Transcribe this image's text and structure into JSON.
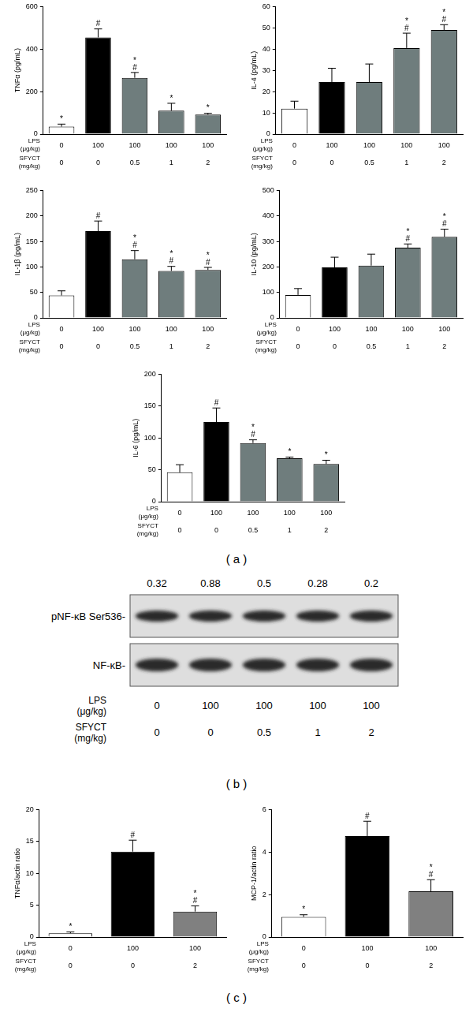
{
  "panel_labels": [
    "( a )",
    "( b )",
    "( c )"
  ],
  "chart_data": [
    {
      "type": "bar",
      "y_label": "TNFα (pg/mL)",
      "category_rows": [
        "LPS (μg/kg)",
        "SFYCT (mg/kg)"
      ],
      "categories": [
        [
          "0",
          "0"
        ],
        [
          "100",
          "0"
        ],
        [
          "100",
          "0.5"
        ],
        [
          "100",
          "1"
        ],
        [
          "100",
          "2"
        ]
      ],
      "values": [
        35,
        455,
        265,
        110,
        92
      ],
      "errors": [
        12,
        40,
        25,
        35,
        6
      ],
      "significance": [
        [
          "*"
        ],
        [
          "#"
        ],
        [
          "*",
          "#"
        ],
        [
          "*"
        ],
        [
          "*"
        ]
      ],
      "colors": [
        "#ffffff",
        "#000000",
        "#6f7d7d",
        "#6f7d7d",
        "#6f7d7d"
      ],
      "ylim": [
        0,
        600
      ],
      "yticks": [
        0,
        200,
        400,
        600
      ]
    },
    {
      "type": "bar",
      "y_label": "IL-4 (pg/mL)",
      "category_rows": [
        "LPS (μg/kg)",
        "SFYCT (mg/kg)"
      ],
      "categories": [
        [
          "0",
          "0"
        ],
        [
          "100",
          "0"
        ],
        [
          "100",
          "0.5"
        ],
        [
          "100",
          "1"
        ],
        [
          "100",
          "2"
        ]
      ],
      "values": [
        12,
        24.5,
        24.5,
        40.5,
        49
      ],
      "errors": [
        3.5,
        6.5,
        8.5,
        7,
        2.5
      ],
      "significance": [
        [],
        [],
        [],
        [
          "*",
          "#"
        ],
        [
          "*",
          "#"
        ]
      ],
      "colors": [
        "#ffffff",
        "#000000",
        "#6f7d7d",
        "#6f7d7d",
        "#6f7d7d"
      ],
      "ylim": [
        0,
        60
      ],
      "yticks": [
        0,
        10,
        20,
        30,
        40,
        50,
        60
      ]
    },
    {
      "type": "bar",
      "y_label": "IL-1β (pg/mL)",
      "category_rows": [
        "LPS (μg/kg)",
        "SFYCT (mg/kg)"
      ],
      "categories": [
        [
          "0",
          "0"
        ],
        [
          "100",
          "0"
        ],
        [
          "100",
          "0.5"
        ],
        [
          "100",
          "1"
        ],
        [
          "100",
          "2"
        ]
      ],
      "values": [
        44,
        170,
        115,
        92,
        94
      ],
      "errors": [
        9,
        20,
        17,
        9,
        5
      ],
      "significance": [
        [],
        [
          "#"
        ],
        [
          "*",
          "#"
        ],
        [
          "*",
          "#"
        ],
        [
          "*",
          "#"
        ]
      ],
      "colors": [
        "#ffffff",
        "#000000",
        "#6f7d7d",
        "#6f7d7d",
        "#6f7d7d"
      ],
      "ylim": [
        0,
        250
      ],
      "yticks": [
        0,
        50,
        100,
        150,
        200,
        250
      ]
    },
    {
      "type": "bar",
      "y_label": "IL-10 (pg/mL)",
      "category_rows": [
        "LPS (μg/kg)",
        "SFYCT (mg/kg)"
      ],
      "categories": [
        [
          "0",
          "0"
        ],
        [
          "100",
          "0"
        ],
        [
          "100",
          "0.5"
        ],
        [
          "100",
          "1"
        ],
        [
          "100",
          "2"
        ]
      ],
      "values": [
        90,
        198,
        205,
        275,
        318
      ],
      "errors": [
        25,
        40,
        45,
        15,
        30
      ],
      "significance": [
        [],
        [],
        [],
        [
          "*",
          "#"
        ],
        [
          "*",
          "#"
        ]
      ],
      "colors": [
        "#ffffff",
        "#000000",
        "#6f7d7d",
        "#6f7d7d",
        "#6f7d7d"
      ],
      "ylim": [
        0,
        500
      ],
      "yticks": [
        0,
        100,
        200,
        300,
        400,
        500
      ]
    },
    {
      "type": "bar",
      "y_label": "IL-6 (pg/mL)",
      "category_rows": [
        "LPS (μg/kg)",
        "SFYCT (mg/kg)"
      ],
      "categories": [
        [
          "0",
          "0"
        ],
        [
          "100",
          "0"
        ],
        [
          "100",
          "0.5"
        ],
        [
          "100",
          "1"
        ],
        [
          "100",
          "2"
        ]
      ],
      "values": [
        46,
        125,
        92,
        68,
        59
      ],
      "errors": [
        12,
        22,
        5,
        2,
        6
      ],
      "significance": [
        [],
        [
          "#"
        ],
        [
          "*",
          "#"
        ],
        [
          "*"
        ],
        [
          "*"
        ]
      ],
      "colors": [
        "#ffffff",
        "#000000",
        "#6f7d7d",
        "#6f7d7d",
        "#6f7d7d"
      ],
      "ylim": [
        0,
        200
      ],
      "yticks": [
        0,
        50,
        100,
        150,
        200
      ]
    },
    {
      "type": "bar",
      "y_label": "TNFα/actin ratio",
      "category_rows": [
        "LPS (μg/kg)",
        "SFYCT (mg/kg)"
      ],
      "categories": [
        [
          "0",
          "0"
        ],
        [
          "100",
          "0"
        ],
        [
          "100",
          "2"
        ]
      ],
      "values": [
        0.6,
        13.4,
        4.0
      ],
      "errors": [
        0.2,
        1.8,
        0.9
      ],
      "significance": [
        [
          "*"
        ],
        [
          "#"
        ],
        [
          "*",
          "#"
        ]
      ],
      "colors": [
        "#ffffff",
        "#000000",
        "#808080"
      ],
      "ylim": [
        0,
        20
      ],
      "yticks": [
        0,
        5,
        10,
        15,
        20
      ]
    },
    {
      "type": "bar",
      "y_label": "MCP-1/actin ratio",
      "category_rows": [
        "LPS (μg/kg)",
        "SFYCT (mg/kg)"
      ],
      "categories": [
        [
          "0",
          "0"
        ],
        [
          "100",
          "0"
        ],
        [
          "100",
          "2"
        ]
      ],
      "values": [
        0.95,
        4.75,
        2.15
      ],
      "errors": [
        0.1,
        0.7,
        0.55
      ],
      "significance": [
        [
          "*"
        ],
        [
          "#"
        ],
        [
          "*",
          "#"
        ]
      ],
      "colors": [
        "#ffffff",
        "#000000",
        "#808080"
      ],
      "ylim": [
        0,
        6
      ],
      "yticks": [
        0,
        2,
        4,
        6
      ]
    }
  ],
  "blot": {
    "bands": [
      "pNF-κB Ser536-",
      "NF-κB-"
    ],
    "quantification": [
      0.32,
      0.88,
      0.5,
      0.28,
      0.2
    ],
    "category_rows": [
      "LPS (μg/kg)",
      "SFYCT (mg/kg)"
    ],
    "categories": [
      [
        "0",
        "0"
      ],
      [
        "100",
        "0"
      ],
      [
        "100",
        "0.5"
      ],
      [
        "100",
        "1"
      ],
      [
        "100",
        "2"
      ]
    ]
  }
}
